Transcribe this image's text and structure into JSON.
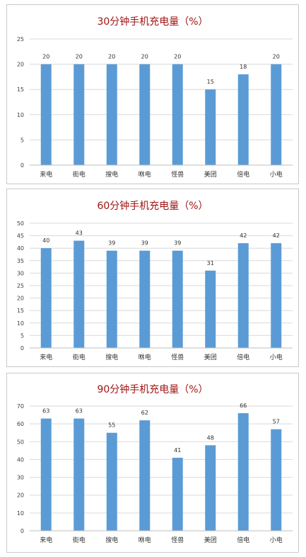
{
  "chart_data": [
    {
      "type": "bar",
      "title": "30分钟手机充电量（%）",
      "categories": [
        "来电",
        "街电",
        "搜电",
        "咻电",
        "怪兽",
        "美团",
        "倍电",
        "小电"
      ],
      "values": [
        20,
        20,
        20,
        20,
        20,
        15,
        18,
        20
      ],
      "ylim": [
        0,
        25
      ],
      "yticks": [
        0,
        5,
        10,
        15,
        20,
        25
      ],
      "grid": true,
      "bar_color": "#5b9bd5",
      "title_color": "#a01414"
    },
    {
      "type": "bar",
      "title": "60分钟手机充电量（%）",
      "categories": [
        "来电",
        "街电",
        "搜电",
        "咻电",
        "怪兽",
        "美团",
        "倍电",
        "小电"
      ],
      "values": [
        40,
        43,
        39,
        39,
        39,
        31,
        42,
        42
      ],
      "ylim": [
        0,
        50
      ],
      "yticks": [
        0,
        5,
        10,
        15,
        20,
        25,
        30,
        35,
        40,
        45,
        50
      ],
      "grid": true,
      "bar_color": "#5b9bd5",
      "title_color": "#a01414"
    },
    {
      "type": "bar",
      "title": "90分钟手机充电量（%）",
      "categories": [
        "来电",
        "街电",
        "搜电",
        "咻电",
        "怪兽",
        "美团",
        "倍电",
        "小电"
      ],
      "values": [
        63,
        63,
        55,
        62,
        41,
        48,
        66,
        57
      ],
      "ylim": [
        0,
        70
      ],
      "yticks": [
        0,
        10,
        20,
        30,
        40,
        50,
        60,
        70
      ],
      "grid": true,
      "bar_color": "#5b9bd5",
      "title_color": "#a01414"
    }
  ]
}
